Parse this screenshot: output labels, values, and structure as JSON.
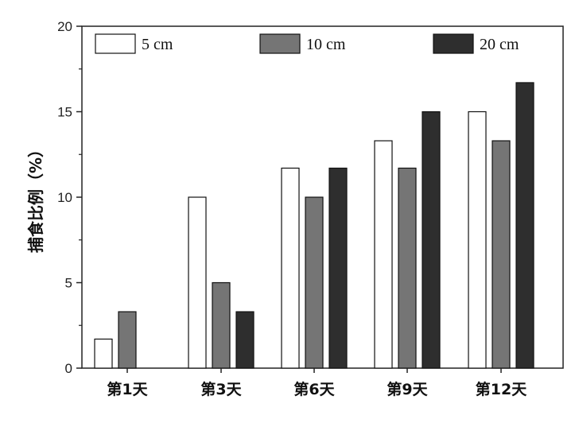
{
  "chart_data": {
    "type": "bar",
    "title": "",
    "xlabel": "",
    "ylabel": "捕食比例（%）",
    "ylim": [
      0,
      20
    ],
    "yticks": [
      0,
      5,
      10,
      15,
      20
    ],
    "categories": [
      "第1天",
      "第3天",
      "第6天",
      "第9天",
      "第12天"
    ],
    "series": [
      {
        "name": "5 cm",
        "color": "#ffffff",
        "values": [
          1.7,
          10.0,
          11.7,
          13.3,
          15.0
        ]
      },
      {
        "name": "10 cm",
        "color": "#757575",
        "values": [
          3.3,
          5.0,
          10.0,
          11.7,
          13.3
        ]
      },
      {
        "name": "20 cm",
        "color": "#2e2e2e",
        "values": [
          0,
          3.3,
          11.7,
          15.0,
          16.7
        ]
      }
    ],
    "legend_position": "top",
    "grid": false
  }
}
